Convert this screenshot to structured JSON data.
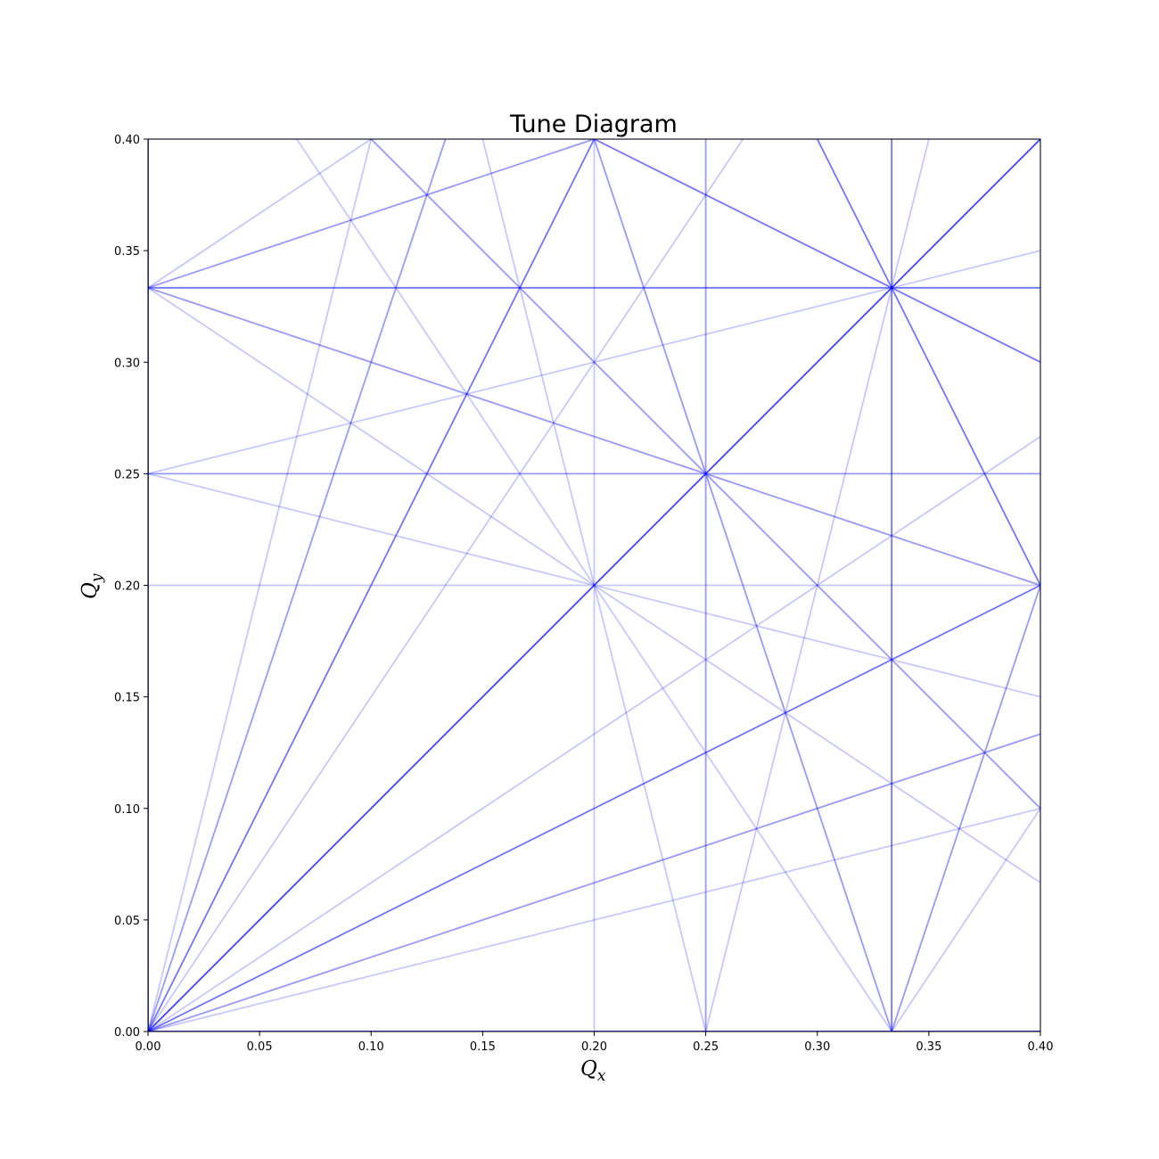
{
  "chart_data": {
    "type": "line",
    "title": "Tune Diagram",
    "xlabel": {
      "main": "Q",
      "sub": "x"
    },
    "ylabel": {
      "main": "Q",
      "sub": "y"
    },
    "xlim": [
      0.0,
      0.4
    ],
    "ylim": [
      0.0,
      0.4
    ],
    "xticks": [
      "0.00",
      "0.05",
      "0.10",
      "0.15",
      "0.20",
      "0.25",
      "0.30",
      "0.35",
      "0.40"
    ],
    "yticks": [
      "0.00",
      "0.05",
      "0.10",
      "0.15",
      "0.20",
      "0.25",
      "0.30",
      "0.35",
      "0.40"
    ],
    "line_color": "#0000ff",
    "grid": false,
    "resonance_orders": [
      1,
      2,
      3,
      4,
      5
    ],
    "resonance_note": "lines m*Qx + n*Qy = p with |m|+|n| = order; opacity decreases with order"
  }
}
